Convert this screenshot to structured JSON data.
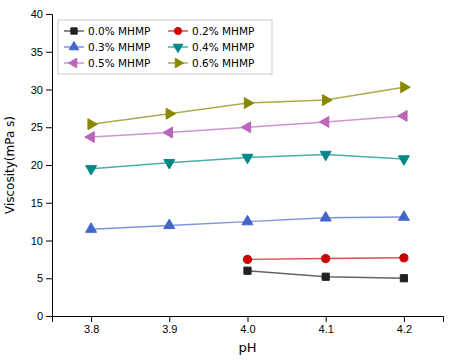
{
  "chart_data": {
    "type": "line",
    "xlabel": "pH",
    "ylabel": "Viscosity(mPa s)",
    "x": [
      3.8,
      3.9,
      4.0,
      4.1,
      4.2
    ],
    "series": [
      {
        "name": "0.0% MHMP",
        "values": [
          null,
          null,
          6.0,
          5.2,
          5.0
        ],
        "color": "#222222",
        "marker": "square"
      },
      {
        "name": "0.2% MHMP",
        "values": [
          null,
          null,
          7.5,
          7.6,
          7.7
        ],
        "color": "#cc0000",
        "marker": "circle"
      },
      {
        "name": "0.3% MHMP",
        "values": [
          11.5,
          12.0,
          12.5,
          13.0,
          13.1
        ],
        "color": "#4466cc",
        "marker": "triangle-up"
      },
      {
        "name": "0.4% MHMP",
        "values": [
          19.5,
          20.3,
          21.0,
          21.4,
          20.8
        ],
        "color": "#008888",
        "marker": "triangle-down"
      },
      {
        "name": "0.5% MHMP",
        "values": [
          23.7,
          24.3,
          25.0,
          25.7,
          26.5
        ],
        "color": "#bb66bb",
        "marker": "triangle-left"
      },
      {
        "name": "0.6% MHMP",
        "values": [
          25.4,
          26.8,
          28.2,
          28.6,
          30.3
        ],
        "color": "#888800",
        "marker": "triangle-right"
      }
    ],
    "xlim": [
      3.75,
      4.25
    ],
    "ylim": [
      0,
      40
    ],
    "xticks": [
      3.8,
      3.9,
      {
        "value": 4.0,
        "label": "4.0"
      },
      4.1,
      4.2
    ],
    "yticks": [
      0,
      5,
      10,
      15,
      20,
      25,
      30,
      35,
      40
    ],
    "legend": "upper left"
  }
}
